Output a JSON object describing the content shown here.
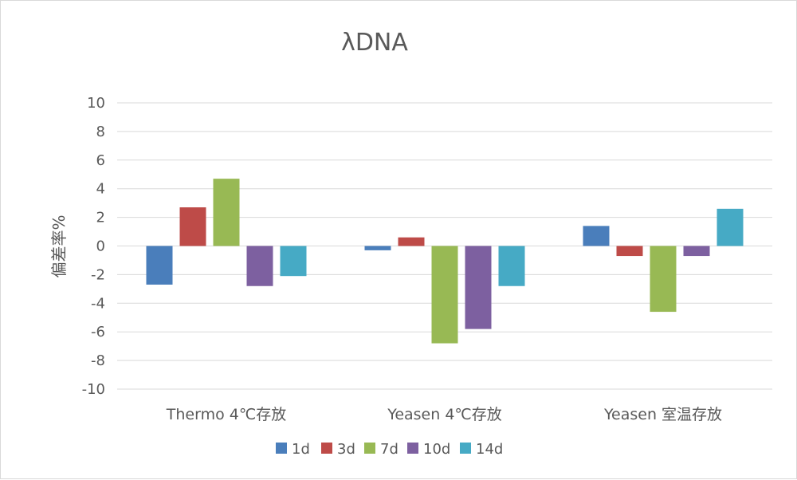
{
  "chart_data": {
    "type": "bar",
    "title": "λDNA",
    "ylabel": "偏差率%",
    "xlabel": "",
    "ylim": [
      -10,
      10
    ],
    "yticks": [
      10,
      8,
      6,
      4,
      2,
      0,
      -2,
      -4,
      -6,
      -8,
      -10
    ],
    "grid": true,
    "legend_position": "bottom",
    "categories": [
      "Thermo 4℃存放",
      "Yeasen 4℃存放",
      "Yeasen 室温存放"
    ],
    "series": [
      {
        "name": "1d",
        "color": "#4a7ebb",
        "values": [
          -2.7,
          -0.3,
          1.4
        ]
      },
      {
        "name": "3d",
        "color": "#be4b48",
        "values": [
          2.7,
          0.6,
          -0.7
        ]
      },
      {
        "name": "7d",
        "color": "#98b954",
        "values": [
          4.7,
          -6.8,
          -4.6
        ]
      },
      {
        "name": "10d",
        "color": "#7d60a0",
        "values": [
          -2.8,
          -5.8,
          -0.7
        ]
      },
      {
        "name": "14d",
        "color": "#46aac5",
        "values": [
          -2.1,
          -2.8,
          2.6
        ]
      }
    ]
  }
}
